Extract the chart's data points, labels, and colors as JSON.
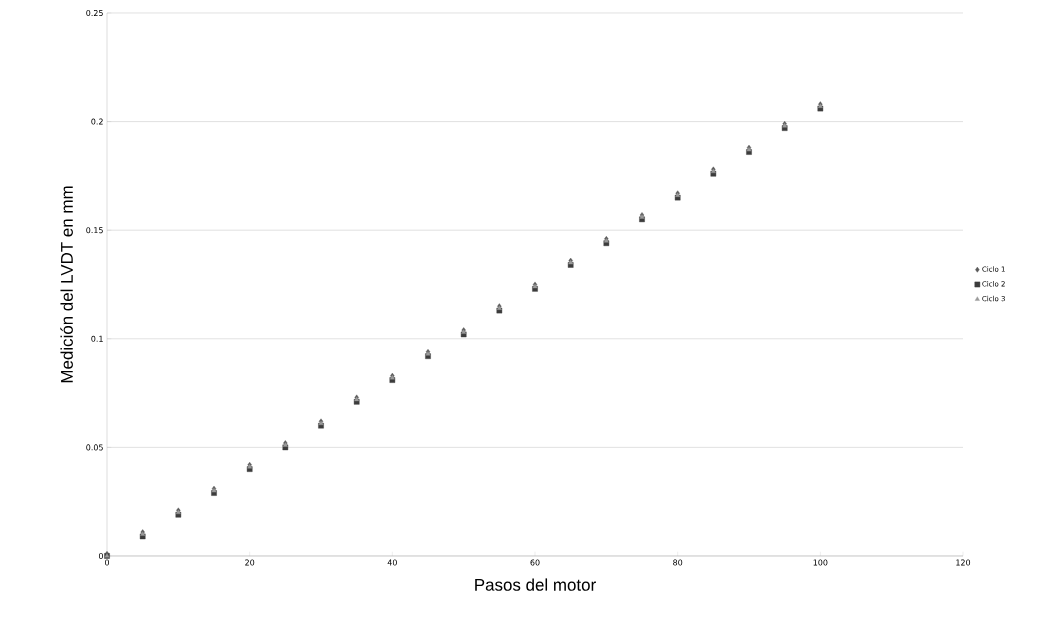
{
  "chart_data": {
    "type": "scatter",
    "xlabel": "Pasos del motor",
    "ylabel": "Medición del LVDT en mm",
    "x": [
      0,
      5,
      10,
      15,
      20,
      25,
      30,
      35,
      40,
      45,
      50,
      55,
      60,
      65,
      70,
      75,
      80,
      85,
      90,
      95,
      100
    ],
    "series": [
      {
        "name": "Ciclo 1",
        "color": "#5a5a5a",
        "marker": "diamond",
        "values": [
          0.001,
          0.011,
          0.021,
          0.031,
          0.042,
          0.052,
          0.062,
          0.073,
          0.083,
          0.094,
          0.104,
          0.115,
          0.125,
          0.136,
          0.146,
          0.157,
          0.167,
          0.178,
          0.188,
          0.199,
          0.208
        ]
      },
      {
        "name": "Ciclo 2",
        "color": "#3c3c3c",
        "marker": "square",
        "values": [
          0.0,
          0.009,
          0.019,
          0.029,
          0.04,
          0.05,
          0.06,
          0.071,
          0.081,
          0.092,
          0.102,
          0.113,
          0.123,
          0.134,
          0.144,
          0.155,
          0.165,
          0.176,
          0.186,
          0.197,
          0.206
        ]
      },
      {
        "name": "Ciclo 3",
        "color": "#9a9a9a",
        "marker": "triangle",
        "values": [
          0.0,
          0.01,
          0.02,
          0.03,
          0.041,
          0.051,
          0.061,
          0.072,
          0.082,
          0.093,
          0.103,
          0.114,
          0.124,
          0.135,
          0.145,
          0.156,
          0.166,
          0.177,
          0.187,
          0.198,
          0.207
        ]
      }
    ],
    "xlim": [
      0,
      120
    ],
    "xticks": [
      0,
      20,
      40,
      60,
      80,
      100,
      120
    ],
    "ylim": [
      0,
      0.25
    ],
    "yticks": [
      0,
      0.05,
      0.1,
      0.15,
      0.2,
      0.25
    ],
    "grid": "y",
    "legend": "right"
  }
}
